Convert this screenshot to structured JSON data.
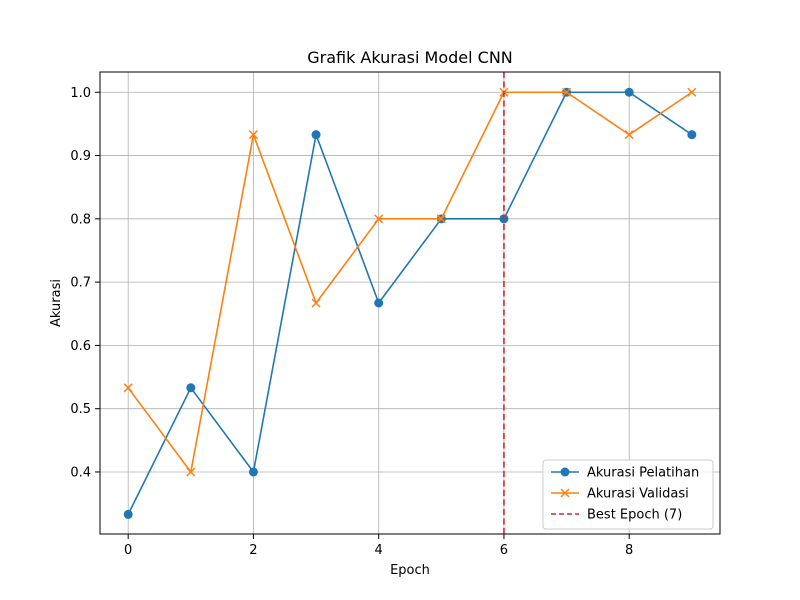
{
  "chart_data": {
    "type": "line",
    "title": "Grafik Akurasi Model CNN",
    "xlabel": "Epoch",
    "ylabel": "Akurasi",
    "x": [
      0,
      1,
      2,
      3,
      4,
      5,
      6,
      7,
      8,
      9
    ],
    "xlim": [
      -0.45,
      9.45
    ],
    "ylim": [
      0.302,
      1.032
    ],
    "xticks": [
      0,
      2,
      4,
      6,
      8
    ],
    "yticks": [
      0.4,
      0.5,
      0.6,
      0.7,
      0.8,
      0.9,
      1.0
    ],
    "xtick_labels": [
      "0",
      "2",
      "4",
      "6",
      "8"
    ],
    "ytick_labels": [
      "0.4",
      "0.5",
      "0.6",
      "0.7",
      "0.8",
      "0.9",
      "1.0"
    ],
    "grid": true,
    "legend_position": "bottom-right",
    "series": [
      {
        "name": "Akurasi Pelatihan",
        "color": "#1f77b4",
        "marker": "circle",
        "values": [
          0.333,
          0.533,
          0.4,
          0.933,
          0.667,
          0.8,
          0.8,
          1.0,
          1.0,
          0.933
        ]
      },
      {
        "name": "Akurasi Validasi",
        "color": "#ff7f0e",
        "marker": "x",
        "values": [
          0.533,
          0.4,
          0.933,
          0.667,
          0.8,
          0.8,
          1.0,
          1.0,
          0.933,
          1.0
        ]
      }
    ],
    "vline": {
      "name": "Best Epoch (7)",
      "x": 6,
      "color": "#d62728",
      "style": "dashed"
    }
  }
}
